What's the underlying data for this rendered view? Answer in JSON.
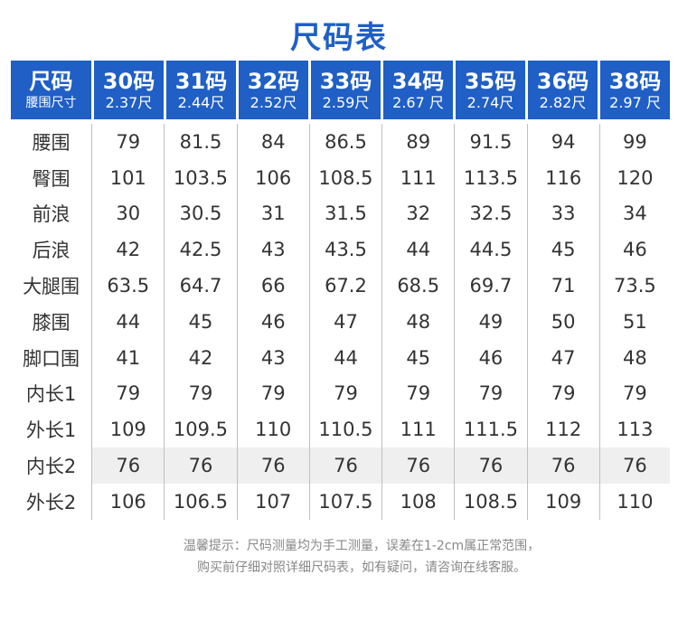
{
  "title": "尺码表",
  "header": {
    "first": {
      "main": "尺码",
      "sub": "腰围尺寸"
    },
    "sizes": [
      {
        "main": "30码",
        "sub": "2.37尺"
      },
      {
        "main": "31码",
        "sub": "2.44尺"
      },
      {
        "main": "32码",
        "sub": "2.52尺"
      },
      {
        "main": "33码",
        "sub": "2.59尺"
      },
      {
        "main": "34码",
        "sub": "2.67 尺"
      },
      {
        "main": "35码",
        "sub": "2.74尺"
      },
      {
        "main": "36码",
        "sub": "2.82尺"
      },
      {
        "main": "38码",
        "sub": "2.97 尺"
      }
    ]
  },
  "rows": [
    {
      "label": "腰围",
      "values": [
        "79",
        "81.5",
        "84",
        "86.5",
        "89",
        "91.5",
        "94",
        "99"
      ]
    },
    {
      "label": "臀围",
      "values": [
        "101",
        "103.5",
        "106",
        "108.5",
        "111",
        "113.5",
        "116",
        "120"
      ]
    },
    {
      "label": "前浪",
      "values": [
        "30",
        "30.5",
        "31",
        "31.5",
        "32",
        "32.5",
        "33",
        "34"
      ]
    },
    {
      "label": "后浪",
      "values": [
        "42",
        "42.5",
        "43",
        "43.5",
        "44",
        "44.5",
        "45",
        "46"
      ]
    },
    {
      "label": "大腿围",
      "values": [
        "63.5",
        "64.7",
        "66",
        "67.2",
        "68.5",
        "69.7",
        "71",
        "73.5"
      ]
    },
    {
      "label": "膝围",
      "values": [
        "44",
        "45",
        "46",
        "47",
        "48",
        "49",
        "50",
        "51"
      ]
    },
    {
      "label": "脚口围",
      "values": [
        "41",
        "42",
        "43",
        "44",
        "45",
        "46",
        "47",
        "48"
      ]
    },
    {
      "label": "内长1",
      "values": [
        "79",
        "79",
        "79",
        "79",
        "79",
        "79",
        "79",
        "79"
      ]
    },
    {
      "label": "外长1",
      "values": [
        "109",
        "109.5",
        "110",
        "110.5",
        "111",
        "111.5",
        "112",
        "113"
      ]
    },
    {
      "label": "内长2",
      "values": [
        "76",
        "76",
        "76",
        "76",
        "76",
        "76",
        "76",
        "76"
      ]
    },
    {
      "label": "外长2",
      "values": [
        "106",
        "106.5",
        "107",
        "107.5",
        "108",
        "108.5",
        "109",
        "110"
      ]
    }
  ],
  "footnote": {
    "line1": "温馨提示：尺码测量均为手工测量，误差在1-2cm属正常范围，",
    "line2": "购买前仔细对照详细尺码表，如有疑问，请咨询在线客服。"
  }
}
